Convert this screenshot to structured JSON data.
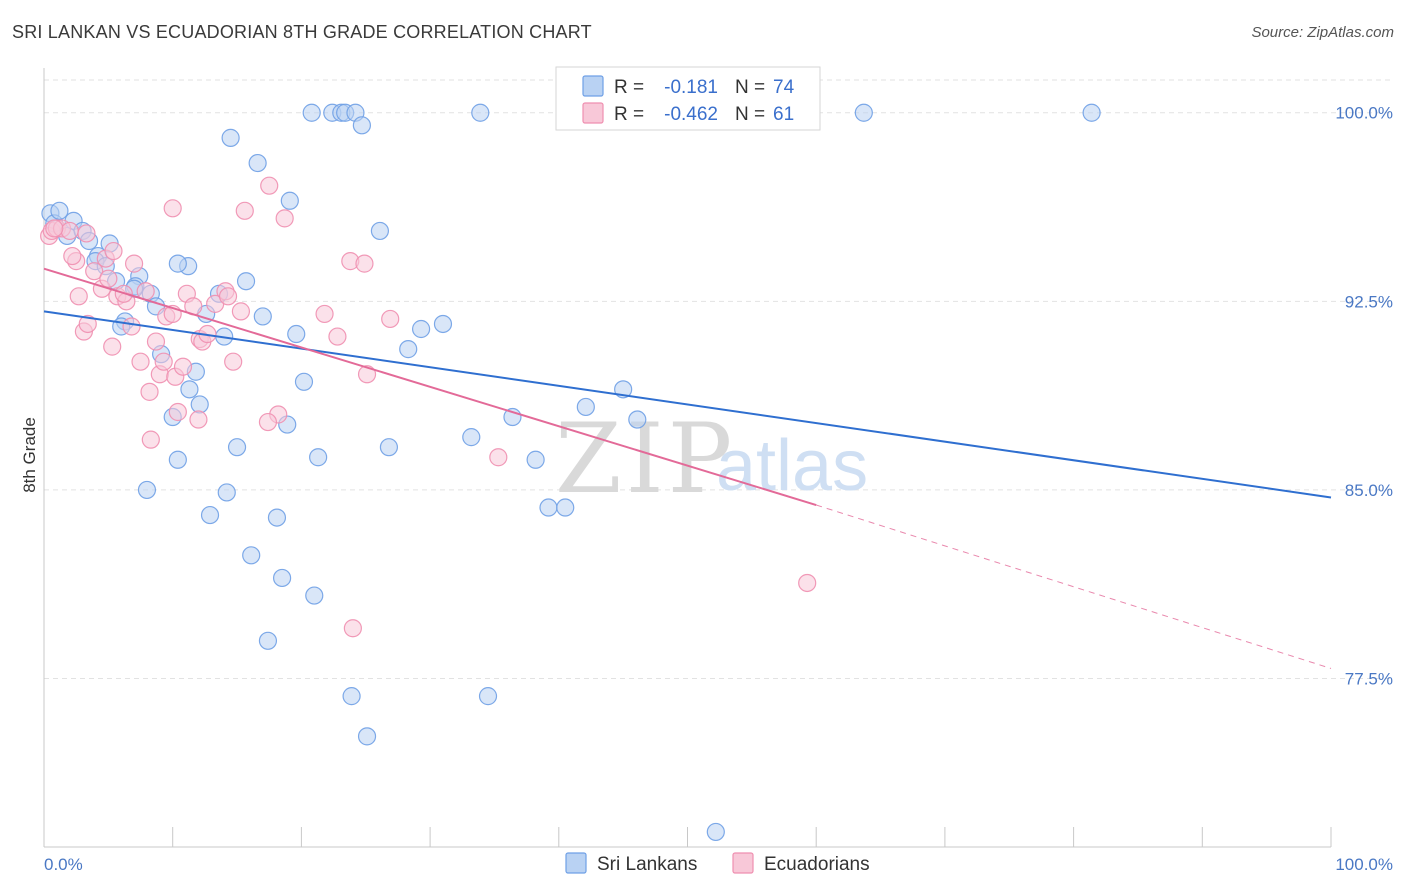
{
  "title": "SRI LANKAN VS ECUADORIAN 8TH GRADE CORRELATION CHART",
  "source": "Source: ZipAtlas.com",
  "watermark": {
    "zip": "ZIP",
    "atlas": "atlas"
  },
  "colors": {
    "blue": "#6fa0e6",
    "blue_fill": "#b9d2f3",
    "blue_line": "#2f6fd0",
    "pink": "#ef8fb0",
    "pink_fill": "#f8c8d8",
    "pink_line": "#e36a98",
    "tick_text": "#4a78c4"
  },
  "legend": {
    "r_label": "R =",
    "n_label": "N =",
    "rows": [
      {
        "series": "Sri Lankans",
        "r": "-0.181",
        "n": "74"
      },
      {
        "series": "Ecuadorians",
        "r": "-0.462",
        "n": "61"
      }
    ]
  },
  "chart_data": {
    "type": "scatter",
    "title": "SRI LANKAN VS ECUADORIAN 8TH GRADE CORRELATION CHART",
    "xlabel": "",
    "ylabel": "8th Grade",
    "xlim": [
      0,
      100
    ],
    "ylim": [
      70.8,
      101.7
    ],
    "x_tick_labels": [
      "0.0%",
      "100.0%"
    ],
    "y_ticks": [
      77.5,
      85.0,
      92.5,
      100.0
    ],
    "y_tick_labels": [
      "77.5%",
      "85.0%",
      "92.5%",
      "100.0%"
    ],
    "grid": true,
    "legend_position": "top-center",
    "series": [
      {
        "name": "Sri Lankans",
        "trend": {
          "x0": 0,
          "y0": 92.1,
          "x1": 100,
          "y1": 84.7
        },
        "points": [
          [
            0.5,
            96.0
          ],
          [
            0.8,
            95.6
          ],
          [
            1.2,
            96.1
          ],
          [
            1.8,
            95.1
          ],
          [
            2.3,
            95.7
          ],
          [
            3.0,
            95.3
          ],
          [
            3.5,
            94.9
          ],
          [
            4.2,
            94.3
          ],
          [
            4.0,
            94.1
          ],
          [
            5.1,
            94.8
          ],
          [
            4.8,
            93.9
          ],
          [
            5.6,
            93.3
          ],
          [
            7.4,
            93.5
          ],
          [
            7.1,
            93.1
          ],
          [
            7.0,
            93.0
          ],
          [
            8.3,
            92.8
          ],
          [
            8.7,
            92.3
          ],
          [
            6.3,
            91.7
          ],
          [
            6.0,
            91.5
          ],
          [
            9.1,
            90.4
          ],
          [
            11.2,
            93.9
          ],
          [
            10.4,
            94.0
          ],
          [
            12.6,
            92.0
          ],
          [
            13.6,
            92.8
          ],
          [
            15.7,
            93.3
          ],
          [
            17.0,
            91.9
          ],
          [
            19.6,
            91.2
          ],
          [
            11.3,
            89.0
          ],
          [
            12.1,
            88.4
          ],
          [
            10.0,
            87.9
          ],
          [
            14.0,
            91.1
          ],
          [
            11.8,
            89.7
          ],
          [
            15.0,
            86.7
          ],
          [
            10.4,
            86.2
          ],
          [
            8.0,
            85.0
          ],
          [
            14.2,
            84.9
          ],
          [
            18.9,
            87.6
          ],
          [
            21.3,
            86.3
          ],
          [
            26.8,
            86.7
          ],
          [
            29.3,
            91.4
          ],
          [
            28.3,
            90.6
          ],
          [
            31.0,
            91.6
          ],
          [
            33.2,
            87.1
          ],
          [
            36.4,
            87.9
          ],
          [
            38.2,
            86.2
          ],
          [
            39.2,
            84.3
          ],
          [
            40.5,
            84.3
          ],
          [
            42.1,
            88.3
          ],
          [
            45.0,
            89.0
          ],
          [
            46.1,
            87.8
          ],
          [
            20.2,
            89.3
          ],
          [
            12.9,
            84.0
          ],
          [
            18.1,
            83.9
          ],
          [
            16.1,
            82.4
          ],
          [
            18.5,
            81.5
          ],
          [
            21.0,
            80.8
          ],
          [
            17.4,
            79.0
          ],
          [
            23.9,
            76.8
          ],
          [
            34.5,
            76.8
          ],
          [
            25.1,
            75.2
          ],
          [
            20.8,
            100.0
          ],
          [
            22.4,
            100.0
          ],
          [
            23.1,
            100.0
          ],
          [
            23.4,
            100.0
          ],
          [
            24.2,
            100.0
          ],
          [
            24.7,
            99.5
          ],
          [
            33.9,
            100.0
          ],
          [
            63.7,
            100.0
          ],
          [
            81.4,
            100.0
          ],
          [
            14.5,
            99.0
          ],
          [
            16.6,
            98.0
          ],
          [
            19.1,
            96.5
          ],
          [
            26.1,
            95.3
          ],
          [
            52.2,
            71.4
          ]
        ]
      },
      {
        "name": "Ecuadorians",
        "trend": {
          "x0": 0,
          "y0": 93.8,
          "x1": 60,
          "y1": 84.4
        },
        "trend_dashed": {
          "x0": 60,
          "y0": 84.4,
          "x1": 100,
          "y1": 77.9
        },
        "points": [
          [
            0.4,
            95.1
          ],
          [
            0.6,
            95.3
          ],
          [
            1.0,
            95.4
          ],
          [
            1.4,
            95.4
          ],
          [
            2.0,
            95.3
          ],
          [
            2.5,
            94.1
          ],
          [
            2.7,
            92.7
          ],
          [
            3.1,
            91.3
          ],
          [
            3.4,
            91.6
          ],
          [
            3.9,
            93.7
          ],
          [
            4.5,
            93.0
          ],
          [
            4.8,
            94.2
          ],
          [
            5.3,
            90.7
          ],
          [
            5.7,
            92.7
          ],
          [
            6.4,
            92.5
          ],
          [
            6.8,
            91.5
          ],
          [
            7.0,
            94.0
          ],
          [
            7.5,
            90.1
          ],
          [
            7.9,
            92.9
          ],
          [
            8.2,
            88.9
          ],
          [
            8.3,
            87.0
          ],
          [
            8.7,
            90.9
          ],
          [
            9.0,
            89.6
          ],
          [
            9.3,
            90.1
          ],
          [
            9.5,
            91.9
          ],
          [
            10.0,
            92.0
          ],
          [
            10.2,
            89.5
          ],
          [
            10.4,
            88.1
          ],
          [
            10.8,
            89.9
          ],
          [
            11.1,
            92.8
          ],
          [
            11.6,
            92.3
          ],
          [
            12.1,
            91.0
          ],
          [
            12.3,
            90.9
          ],
          [
            12.7,
            91.2
          ],
          [
            13.3,
            92.4
          ],
          [
            14.1,
            92.9
          ],
          [
            14.3,
            92.7
          ],
          [
            14.7,
            90.1
          ],
          [
            15.3,
            92.1
          ],
          [
            10.0,
            96.2
          ],
          [
            15.6,
            96.1
          ],
          [
            17.5,
            97.1
          ],
          [
            18.7,
            95.8
          ],
          [
            18.2,
            88.0
          ],
          [
            17.4,
            87.7
          ],
          [
            23.8,
            94.1
          ],
          [
            24.9,
            94.0
          ],
          [
            21.8,
            92.0
          ],
          [
            22.8,
            91.1
          ],
          [
            24.0,
            79.5
          ],
          [
            25.1,
            89.6
          ],
          [
            26.9,
            91.8
          ],
          [
            35.3,
            86.3
          ],
          [
            59.3,
            81.3
          ],
          [
            2.2,
            94.3
          ],
          [
            3.3,
            95.2
          ],
          [
            5.0,
            93.4
          ],
          [
            6.2,
            92.8
          ],
          [
            12.0,
            87.8
          ],
          [
            5.4,
            94.5
          ],
          [
            0.8,
            95.4
          ]
        ]
      }
    ]
  }
}
